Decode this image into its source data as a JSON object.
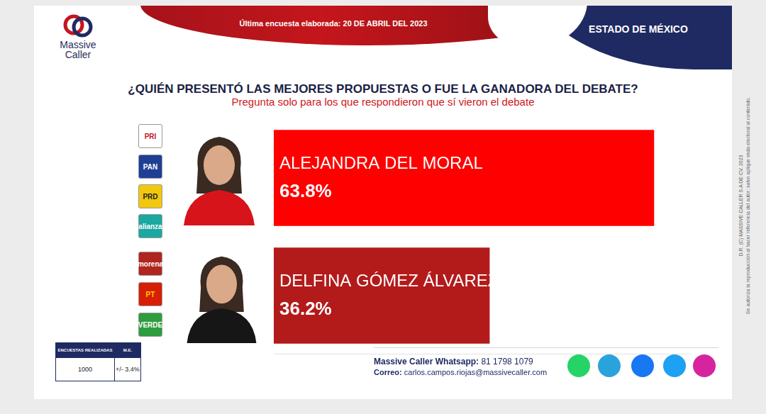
{
  "header": {
    "date_label": "Última encuesta elaborada:",
    "date": "20 DE ABRIL DEL 2023",
    "region": "ESTADO DE MÉXICO",
    "brand": [
      "Massive",
      "Caller"
    ]
  },
  "chart_data": {
    "type": "bar",
    "orientation": "horizontal",
    "title": "¿QUIÉN PRESENTÓ LAS MEJORES PROPUESTAS O FUE LA GANADORA DEL DEBATE?",
    "subtitle": "Pregunta solo para los que respondieron que sí vieron el debate",
    "categories": [
      "ALEJANDRA DEL MORAL",
      "DELFINA GÓMEZ ÁLVAREZ"
    ],
    "values": [
      63.8,
      36.2
    ],
    "value_labels": [
      "63.8%",
      "36.2%"
    ],
    "colors": [
      "#ff0000",
      "#b31b1b"
    ],
    "xlim": [
      0,
      70
    ],
    "data_labels": true,
    "tick_labels": false,
    "grid": false
  },
  "parties": [
    [
      "PRI",
      "PAN",
      "PRD",
      "alianza"
    ],
    [
      "morena",
      "PT",
      "VERDE"
    ]
  ],
  "survey_table": {
    "headers": [
      "ENCUESTAS REALIZADAS",
      "M.E."
    ],
    "row": [
      "1000",
      "+/- 3.4%"
    ]
  },
  "contact": {
    "whatsapp_label": "Massive Caller Whatsapp:",
    "whatsapp": "81 1798 1079",
    "email_label": "Correo:",
    "email": "carlos.campos.riojas@massivecaller.com"
  },
  "copyright": [
    "D.R. (C) MASSIVE CALLER S.A DE CV. 2023",
    "Se autoriza la reproducción al hacer referencia del autor; salvo aplique veda electoral al contenido."
  ]
}
